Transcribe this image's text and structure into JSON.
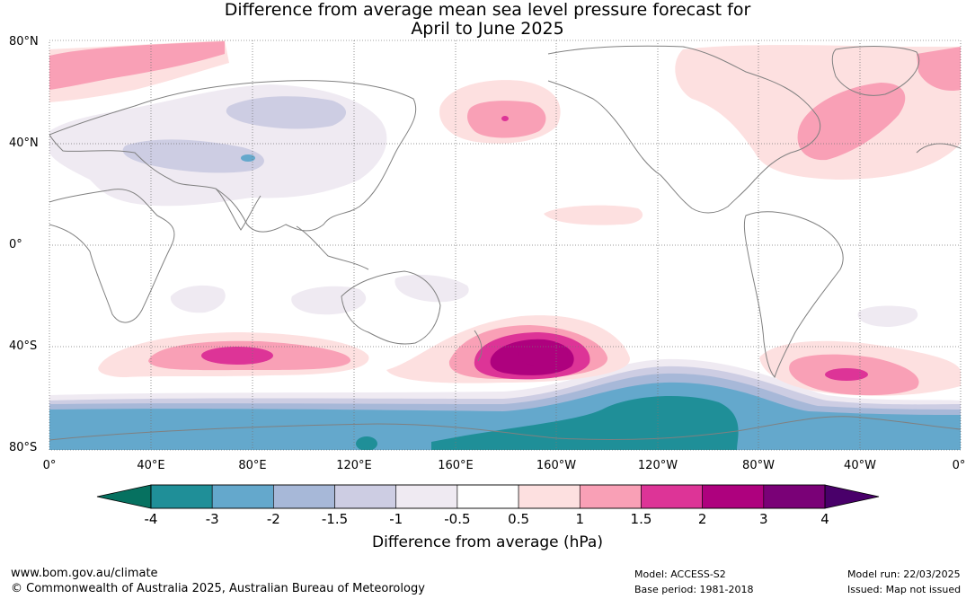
{
  "title_line1": "Difference from average mean sea level pressure forecast for",
  "title_line2": "April to June 2025",
  "latitude_labels": [
    "80°N",
    "40°N",
    "0°",
    "40°S",
    "80°S"
  ],
  "longitude_labels": [
    "0°",
    "40°E",
    "80°E",
    "120°E",
    "160°E",
    "160°W",
    "120°W",
    "80°W",
    "40°W",
    "0°"
  ],
  "legend": {
    "title": "Difference from average (hPa)",
    "tick_labels": [
      "-4",
      "-3",
      "-2",
      "-1.5",
      "-1",
      "-0.5",
      "0.5",
      "1",
      "1.5",
      "2",
      "3",
      "4"
    ],
    "colors": [
      "#067160",
      "#1f8f98",
      "#64a8cc",
      "#a7b8d8",
      "#cdcde3",
      "#efeaf2",
      "#ffffff",
      "#fde0e0",
      "#f9a0b6",
      "#dd3497",
      "#ae017e",
      "#7a0177",
      "#49006a"
    ]
  },
  "footer": {
    "url": "www.bom.gov.au/climate",
    "copyright": "© Commonwealth of Australia 2025, Australian Bureau of Meteorology",
    "model": "Model: ACCESS-S2",
    "base_period": "Base period: 1981-2018",
    "model_run": "Model run: 22/03/2025",
    "issued": "Issued: Map not issued"
  }
}
